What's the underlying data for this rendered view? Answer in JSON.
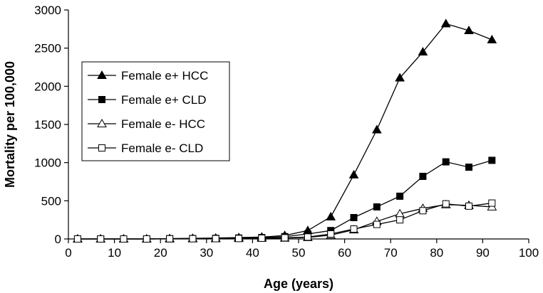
{
  "chart_data": {
    "type": "line",
    "title": "",
    "xlabel": "Age (years)",
    "ylabel": "Mortality per 100,000",
    "xlim": [
      0,
      100
    ],
    "ylim": [
      0,
      3000
    ],
    "x_ticks": [
      0,
      10,
      20,
      30,
      40,
      50,
      60,
      70,
      80,
      90,
      100
    ],
    "y_ticks": [
      0,
      500,
      1000,
      1500,
      2000,
      2500,
      3000
    ],
    "grid": false,
    "legend_position": "left",
    "x": [
      2,
      7,
      12,
      17,
      22,
      27,
      32,
      37,
      42,
      47,
      52,
      57,
      62,
      67,
      72,
      77,
      82,
      87,
      92
    ],
    "series": [
      {
        "name": "Female e+ HCC",
        "marker": "filled-triangle",
        "values": [
          0,
          0,
          0,
          0,
          5,
          8,
          12,
          18,
          25,
          45,
          110,
          290,
          840,
          1430,
          2110,
          2450,
          2820,
          2730,
          2610
        ]
      },
      {
        "name": "Female e+ CLD",
        "marker": "filled-square",
        "values": [
          0,
          0,
          0,
          0,
          3,
          5,
          8,
          12,
          18,
          30,
          65,
          110,
          280,
          420,
          560,
          820,
          1010,
          940,
          1030
        ]
      },
      {
        "name": "Female e- HCC",
        "marker": "open-triangle",
        "values": [
          0,
          0,
          0,
          0,
          2,
          3,
          5,
          8,
          10,
          12,
          20,
          50,
          120,
          230,
          330,
          400,
          450,
          440,
          420
        ]
      },
      {
        "name": "Female e- CLD",
        "marker": "open-square",
        "values": [
          0,
          0,
          0,
          0,
          2,
          3,
          4,
          6,
          10,
          15,
          25,
          65,
          130,
          190,
          250,
          370,
          460,
          430,
          470
        ]
      }
    ]
  }
}
